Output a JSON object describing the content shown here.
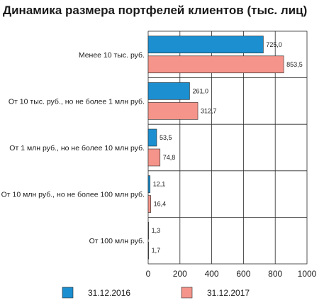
{
  "chart_data": {
    "type": "bar",
    "orientation": "horizontal",
    "title": "Динамика размера портфелей клиентов (тыс. лиц)",
    "categories": [
      "Менее 10 тыс. руб.",
      "От 10 тыс. руб., но не более 1 млн руб.",
      "От 1 млн руб., но не более 10 млн руб.",
      "От 10 млн руб., но не более 100 млн руб.",
      "От 100 млн руб."
    ],
    "series": [
      {
        "name": "31.12.2016",
        "color": "#1b8fd0",
        "values": [
          725.0,
          261.0,
          53.5,
          12.1,
          1.3
        ],
        "labels": [
          "725,0",
          "261,0",
          "53,5",
          "12,1",
          "1,3"
        ]
      },
      {
        "name": "31.12.2017",
        "color": "#f4948a",
        "values": [
          853.5,
          312.7,
          74.8,
          16.4,
          1.7
        ],
        "labels": [
          "853,5",
          "312,7",
          "74,8",
          "16,4",
          "1,7"
        ]
      }
    ],
    "xlim": [
      0,
      1000
    ],
    "xticks": [
      0,
      200,
      400,
      600,
      800,
      1000
    ],
    "xtick_labels": [
      "0",
      "200",
      "400",
      "600",
      "800",
      "1000"
    ],
    "grid": true,
    "legend": "bottom"
  }
}
